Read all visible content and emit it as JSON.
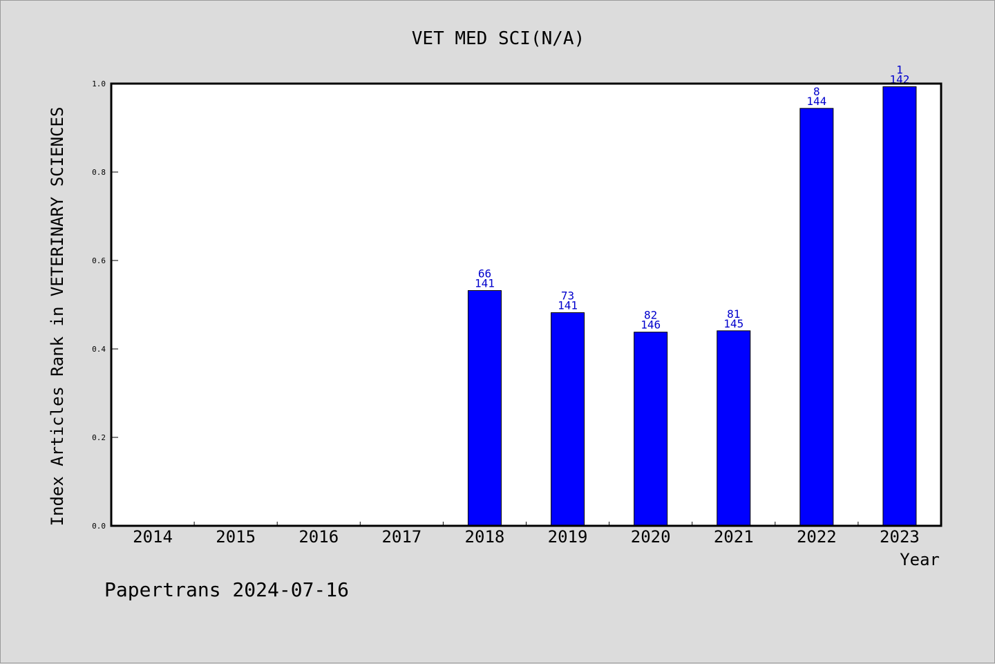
{
  "chart_data": {
    "type": "bar",
    "title": "VET MED SCI(N/A)",
    "xlabel": "Year",
    "ylabel": "Index Articles Rank in VETERINARY SCIENCES",
    "categories": [
      "2014",
      "2015",
      "2016",
      "2017",
      "2018",
      "2019",
      "2020",
      "2021",
      "2022",
      "2023"
    ],
    "values": [
      null,
      null,
      null,
      null,
      0.532,
      0.482,
      0.438,
      0.441,
      0.944,
      0.993
    ],
    "rank_labels": [
      "",
      "",
      "",
      "",
      "66",
      "73",
      "82",
      "81",
      "8",
      "1"
    ],
    "total_labels": [
      "",
      "",
      "",
      "",
      "141",
      "141",
      "146",
      "145",
      "144",
      "142"
    ],
    "ylim": [
      0.0,
      1.0
    ],
    "yticks": [
      "0.0",
      "0.2",
      "0.4",
      "0.6",
      "0.8",
      "1.0"
    ],
    "grid": false,
    "colors": {
      "bar": "#0000ff",
      "bar_label": "#0000cc",
      "plot_bg": "#ffffff",
      "page_bg": "#dcdcdc"
    }
  },
  "footer": {
    "text": "Papertrans 2024-07-16"
  }
}
